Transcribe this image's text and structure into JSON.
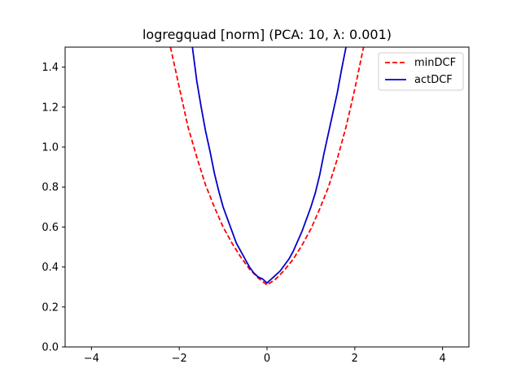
{
  "chart_data": {
    "type": "line",
    "title": "logregquad [norm] (PCA: 10, λ: 0.001)",
    "xlabel": "",
    "ylabel": "",
    "xlim": [
      -4.6,
      4.6
    ],
    "ylim": [
      0.0,
      1.5
    ],
    "xticks": [
      -4,
      -2,
      0,
      2,
      4
    ],
    "xtick_labels": [
      "−4",
      "−2",
      "0",
      "2",
      "4"
    ],
    "yticks": [
      0.0,
      0.2,
      0.4,
      0.6,
      0.8,
      1.0,
      1.2,
      1.4
    ],
    "ytick_labels": [
      "0.0",
      "0.2",
      "0.4",
      "0.6",
      "0.8",
      "1.0",
      "1.2",
      "1.4"
    ],
    "grid": false,
    "legend_position": "top-right",
    "series": [
      {
        "name": "minDCF",
        "color": "#ff0000",
        "style": "dashed",
        "x": [
          -2.2,
          -2.0,
          -1.8,
          -1.6,
          -1.4,
          -1.2,
          -1.0,
          -0.8,
          -0.6,
          -0.4,
          -0.2,
          0.0,
          0.2,
          0.4,
          0.6,
          0.8,
          1.0,
          1.2,
          1.4,
          1.6,
          1.8,
          2.0,
          2.2
        ],
        "y": [
          1.5,
          1.3,
          1.1,
          0.95,
          0.81,
          0.7,
          0.6,
          0.52,
          0.45,
          0.39,
          0.345,
          0.31,
          0.34,
          0.385,
          0.44,
          0.51,
          0.59,
          0.69,
          0.8,
          0.94,
          1.1,
          1.29,
          1.5
        ]
      },
      {
        "name": "actDCF",
        "color": "#0000cc",
        "style": "solid",
        "x": [
          -1.7,
          -1.6,
          -1.5,
          -1.4,
          -1.3,
          -1.2,
          -1.1,
          -1.0,
          -0.9,
          -0.8,
          -0.7,
          -0.6,
          -0.5,
          -0.4,
          -0.3,
          -0.2,
          -0.1,
          0.0,
          0.1,
          0.2,
          0.3,
          0.4,
          0.5,
          0.6,
          0.7,
          0.8,
          0.9,
          1.0,
          1.1,
          1.2,
          1.3,
          1.4,
          1.5,
          1.6,
          1.7,
          1.8
        ],
        "y": [
          1.5,
          1.33,
          1.2,
          1.08,
          0.98,
          0.87,
          0.78,
          0.7,
          0.64,
          0.58,
          0.52,
          0.48,
          0.44,
          0.4,
          0.37,
          0.35,
          0.34,
          0.32,
          0.34,
          0.36,
          0.38,
          0.41,
          0.44,
          0.48,
          0.53,
          0.58,
          0.64,
          0.7,
          0.77,
          0.86,
          0.97,
          1.07,
          1.17,
          1.27,
          1.39,
          1.5
        ]
      }
    ]
  }
}
